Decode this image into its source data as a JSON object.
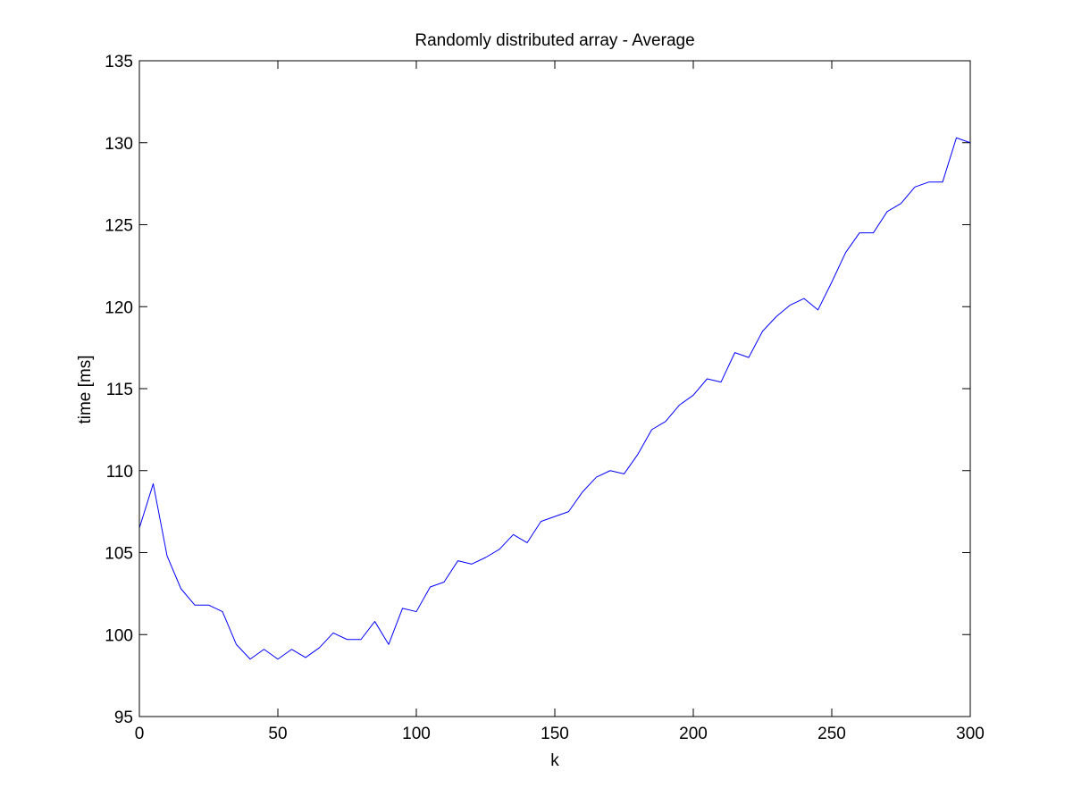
{
  "chart_data": {
    "type": "line",
    "title": "Randomly distributed array - Average",
    "xlabel": "k",
    "ylabel": "time [ms]",
    "xlim": [
      0,
      300
    ],
    "ylim": [
      95,
      135
    ],
    "xticks": [
      0,
      50,
      100,
      150,
      200,
      250,
      300
    ],
    "yticks": [
      95,
      100,
      105,
      110,
      115,
      120,
      125,
      130,
      135
    ],
    "grid": false,
    "legend": "none",
    "series": [
      {
        "color": "#0000ff",
        "x": [
          0,
          5,
          10,
          15,
          20,
          25,
          30,
          35,
          40,
          45,
          50,
          55,
          60,
          65,
          70,
          75,
          80,
          85,
          90,
          95,
          100,
          105,
          110,
          115,
          120,
          125,
          130,
          135,
          140,
          145,
          150,
          155,
          160,
          165,
          170,
          175,
          180,
          185,
          190,
          195,
          200,
          205,
          210,
          215,
          220,
          225,
          230,
          235,
          240,
          245,
          250,
          255,
          260,
          265,
          270,
          275,
          280,
          285,
          290,
          295,
          300
        ],
        "y": [
          106.5,
          109.2,
          104.8,
          102.8,
          101.8,
          101.8,
          101.4,
          99.4,
          98.5,
          99.1,
          98.5,
          99.1,
          98.6,
          99.2,
          100.1,
          99.7,
          99.7,
          100.8,
          99.4,
          101.6,
          101.4,
          102.9,
          103.2,
          104.5,
          104.3,
          104.7,
          105.2,
          106.1,
          105.6,
          106.9,
          107.2,
          107.5,
          108.7,
          109.6,
          110.0,
          109.8,
          111.0,
          112.5,
          113.0,
          114.0,
          114.6,
          115.6,
          115.4,
          117.2,
          116.9,
          118.5,
          119.4,
          120.1,
          120.5,
          119.8,
          121.5,
          123.3,
          124.5,
          124.5,
          125.8,
          126.3,
          127.3,
          127.6,
          127.6,
          130.3,
          130.0
        ]
      }
    ]
  }
}
